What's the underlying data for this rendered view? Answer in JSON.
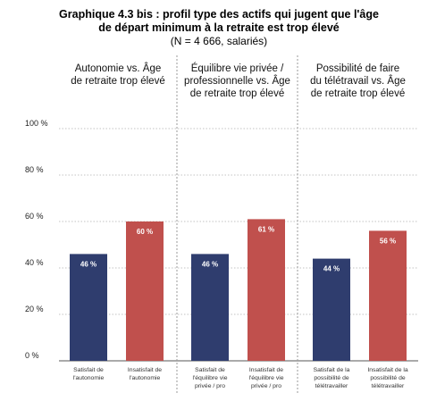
{
  "title_line1": "Graphique 4.3 bis : profil type des actifs qui jugent que l'âge",
  "title_line2": "de départ minimum à la retraite est trop élevé",
  "subtitle": "(N = 4 666, salariés)",
  "colors": {
    "satisfait": "#2f3d6e",
    "insatisfait": "#c0504d",
    "grid": "#b0b0b0",
    "separator": "#9a9a9a"
  },
  "chart_data": {
    "type": "bar",
    "ylim": [
      0,
      100
    ],
    "y_ticks": [
      "0 %",
      "20 %",
      "40 %",
      "60 %",
      "80 %",
      "100 %"
    ],
    "panels": [
      {
        "title_lines": [
          "Autonomie vs. Âge",
          "de retraite trop élevé"
        ],
        "categories": [
          [
            "Satisfait de",
            "l'autonomie"
          ],
          [
            "Insatisfait de",
            "l'autonomie"
          ]
        ],
        "values": [
          46,
          60
        ],
        "labels": [
          "46 %",
          "60 %"
        ]
      },
      {
        "title_lines": [
          "Équilibre vie privée /",
          "professionnelle vs. Âge",
          "de retraite trop élevé"
        ],
        "categories": [
          [
            "Satisfait de",
            "l'équilibre vie",
            "privée / pro"
          ],
          [
            "Insatisfait de",
            "l'équilibre vie",
            "privée / pro"
          ]
        ],
        "values": [
          46,
          61
        ],
        "labels": [
          "46 %",
          "61 %"
        ]
      },
      {
        "title_lines": [
          "Possibilité de faire",
          "du télétravail vs. Âge",
          "de retraite trop élevé"
        ],
        "categories": [
          [
            "Satisfait de la",
            "possibilité de",
            "télétravailler"
          ],
          [
            "Insatisfait de la",
            "possibilité de",
            "télétravailler"
          ]
        ],
        "values": [
          44,
          56
        ],
        "labels": [
          "44 %",
          "56 %"
        ]
      }
    ]
  }
}
